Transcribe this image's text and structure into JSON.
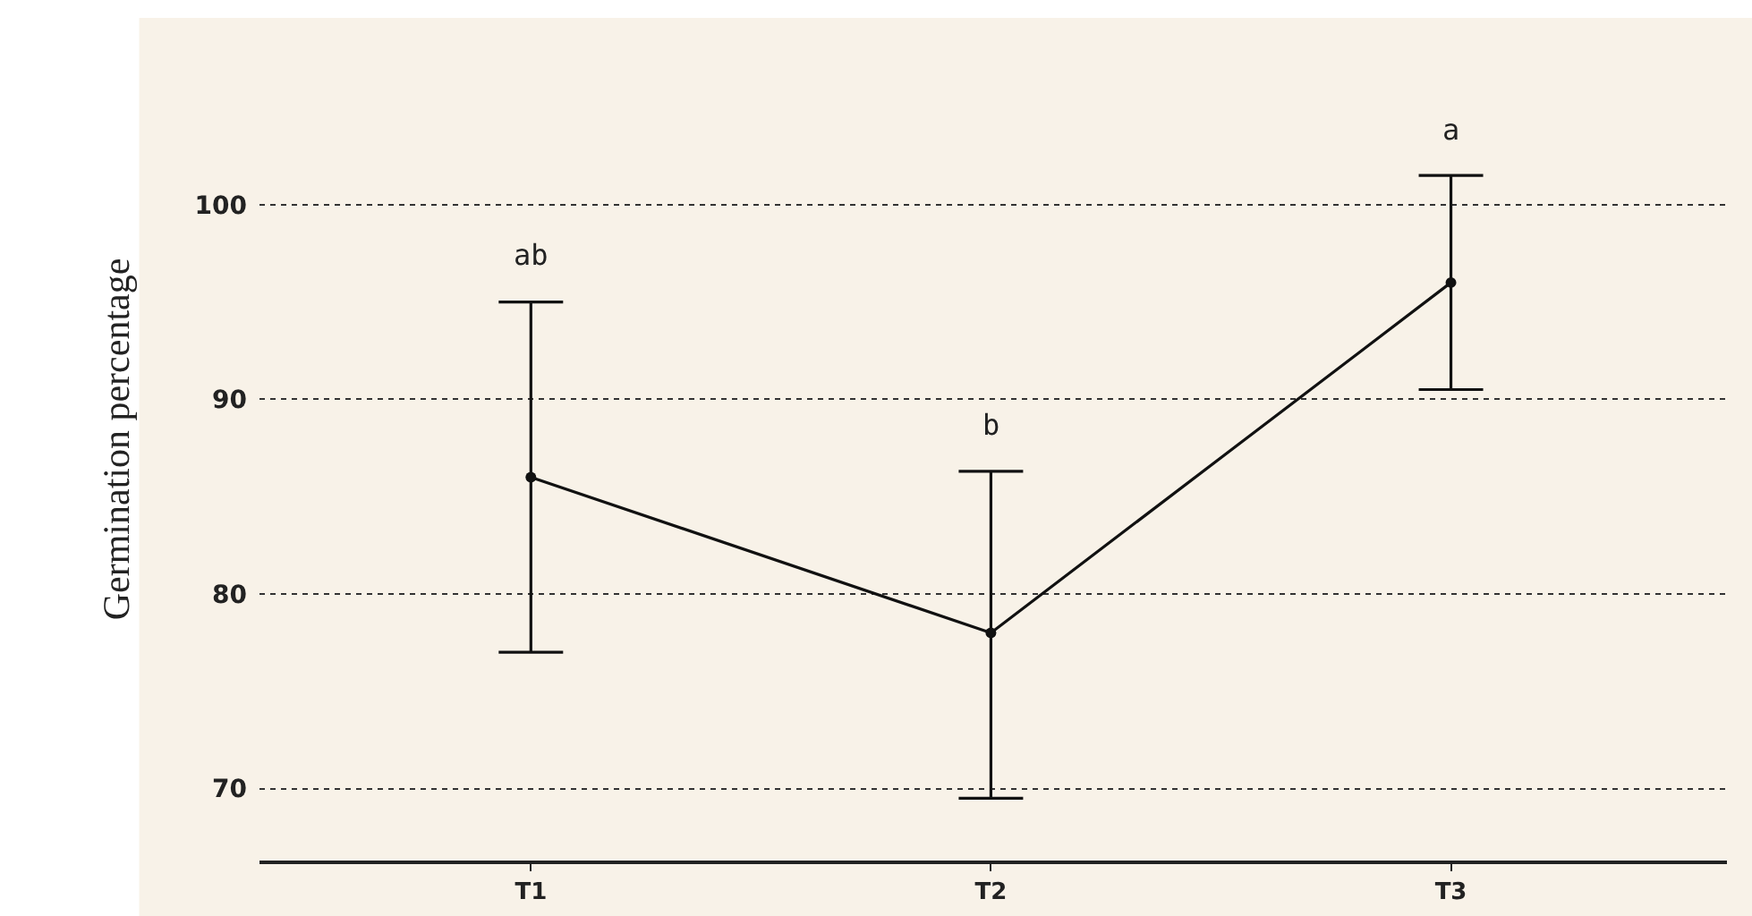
{
  "chart_data": {
    "type": "line",
    "ylabel": "Germination percentage",
    "categories": [
      "T1",
      "T2",
      "T3"
    ],
    "series": [
      {
        "color": "#111111",
        "values": [
          86,
          78,
          96
        ],
        "errors": [
          [
            77,
            95
          ],
          [
            69.5,
            86.3
          ],
          [
            90.5,
            101.5
          ]
        ]
      }
    ],
    "ylim": [
      66.3,
      109.6
    ],
    "yticks": [
      70,
      80,
      90,
      100
    ],
    "grid": "y",
    "marker": "circle",
    "line_style": "solid",
    "annotations": [
      "ab",
      "b",
      "a"
    ]
  }
}
